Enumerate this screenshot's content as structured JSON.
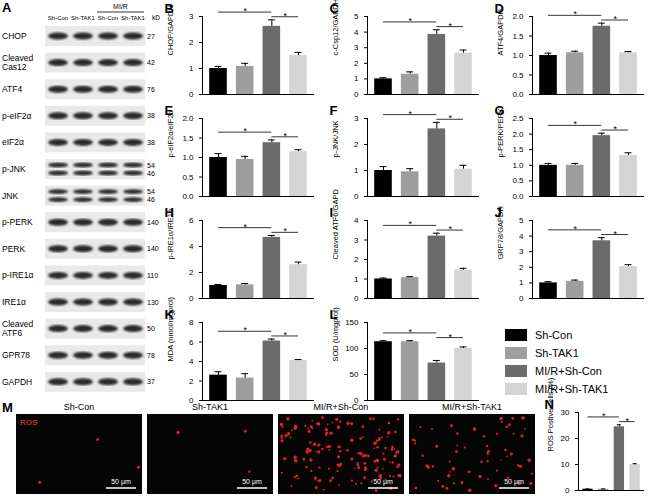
{
  "chart_data": [
    {
      "type": "bar",
      "panel": "B",
      "ylabel": "CHOP/GAPDH",
      "categories": [
        null,
        null,
        null,
        null
      ],
      "tick_labels": "y",
      "colors": [
        "#000000",
        "#9e9e9e",
        "#6b6b6b",
        "#d4d4d4"
      ],
      "values": [
        1.0,
        1.08,
        2.62,
        1.5
      ],
      "errors": [
        0.08,
        0.12,
        0.25,
        0.12
      ],
      "ylim": [
        0,
        3
      ],
      "yticks": [
        0,
        1,
        2,
        3
      ],
      "significance": [
        {
          "from": 0,
          "to": 2,
          "label": "*"
        },
        {
          "from": 2,
          "to": 3,
          "label": "*"
        }
      ]
    },
    {
      "type": "bar",
      "panel": "C",
      "ylabel": "c-Csp12/GAPDH",
      "categories": [
        null,
        null,
        null,
        null
      ],
      "tick_labels": "y",
      "colors": [
        "#000000",
        "#9e9e9e",
        "#6b6b6b",
        "#d4d4d4"
      ],
      "values": [
        1.0,
        1.3,
        3.85,
        2.65
      ],
      "errors": [
        0.08,
        0.15,
        0.3,
        0.2
      ],
      "ylim": [
        0,
        5
      ],
      "yticks": [
        0,
        1,
        2,
        3,
        4,
        5
      ],
      "significance": [
        {
          "from": 0,
          "to": 2,
          "label": "*"
        },
        {
          "from": 2,
          "to": 3,
          "label": "*"
        }
      ]
    },
    {
      "type": "bar",
      "panel": "D",
      "ylabel": "ATF4/GAPDH",
      "categories": [
        null,
        null,
        null,
        null
      ],
      "tick_labels": "y",
      "colors": [
        "#000000",
        "#9e9e9e",
        "#6b6b6b",
        "#d4d4d4"
      ],
      "values": [
        1.0,
        1.07,
        1.75,
        1.07
      ],
      "errors": [
        0.06,
        0.04,
        0.08,
        0.03
      ],
      "ylim": [
        0,
        2
      ],
      "yticks": [
        {
          "value": 0,
          "label": "0.0"
        },
        {
          "value": 0.5,
          "label": "0.5"
        },
        {
          "value": 1,
          "label": "1.0"
        },
        {
          "value": 1.5,
          "label": "1.5"
        },
        {
          "value": 2,
          "label": "2.0"
        }
      ],
      "significance": [
        {
          "from": 0,
          "to": 2,
          "label": "*"
        },
        {
          "from": 2,
          "to": 3,
          "label": "*"
        }
      ]
    },
    {
      "type": "bar",
      "panel": "E",
      "ylabel": "p-eIF2α/eIF2α",
      "categories": [
        null,
        null,
        null,
        null
      ],
      "tick_labels": "y",
      "colors": [
        "#000000",
        "#9e9e9e",
        "#6b6b6b",
        "#d4d4d4"
      ],
      "values": [
        1.0,
        0.95,
        1.38,
        1.15
      ],
      "errors": [
        0.1,
        0.08,
        0.07,
        0.05
      ],
      "ylim": [
        0,
        2
      ],
      "yticks": [
        {
          "value": 0,
          "label": "0.0"
        },
        {
          "value": 0.5,
          "label": "0.5"
        },
        {
          "value": 1,
          "label": "1.0"
        },
        {
          "value": 1.5,
          "label": "1.5"
        },
        {
          "value": 2,
          "label": "2.0"
        }
      ],
      "significance": [
        {
          "from": 0,
          "to": 2,
          "label": "*"
        },
        {
          "from": 2,
          "to": 3,
          "label": "*"
        }
      ]
    },
    {
      "type": "bar",
      "panel": "F",
      "ylabel": "p-JNK/JNK",
      "categories": [
        null,
        null,
        null,
        null
      ],
      "tick_labels": "y",
      "colors": [
        "#000000",
        "#9e9e9e",
        "#6b6b6b",
        "#d4d4d4"
      ],
      "values": [
        1.0,
        0.95,
        2.6,
        1.05
      ],
      "errors": [
        0.15,
        0.12,
        0.25,
        0.15
      ],
      "ylim": [
        0,
        3
      ],
      "yticks": [
        0,
        1,
        2,
        3
      ],
      "significance": [
        {
          "from": 0,
          "to": 2,
          "label": "*"
        },
        {
          "from": 2,
          "to": 3,
          "label": "*"
        }
      ]
    },
    {
      "type": "bar",
      "panel": "G",
      "ylabel": "p-PERK/PERK",
      "categories": [
        null,
        null,
        null,
        null
      ],
      "tick_labels": "y",
      "colors": [
        "#000000",
        "#9e9e9e",
        "#6b6b6b",
        "#d4d4d4"
      ],
      "values": [
        1.0,
        1.0,
        1.95,
        1.32
      ],
      "errors": [
        0.06,
        0.06,
        0.08,
        0.08
      ],
      "ylim": [
        0,
        2.5
      ],
      "yticks": [
        {
          "value": 0,
          "label": "0.0"
        },
        {
          "value": 0.5,
          "label": "0.5"
        },
        {
          "value": 1,
          "label": "1.0"
        },
        {
          "value": 1.5,
          "label": "1.5"
        },
        {
          "value": 2,
          "label": "2.0"
        },
        {
          "value": 2.5,
          "label": "2.5"
        }
      ],
      "significance": [
        {
          "from": 0,
          "to": 2,
          "label": "*"
        },
        {
          "from": 2,
          "to": 3,
          "label": "*"
        }
      ]
    },
    {
      "type": "bar",
      "panel": "H",
      "ylabel": "p-IRE1α/IRE1α",
      "categories": [
        null,
        null,
        null,
        null
      ],
      "tick_labels": "y",
      "colors": [
        "#000000",
        "#9e9e9e",
        "#6b6b6b",
        "#d4d4d4"
      ],
      "values": [
        1.0,
        1.05,
        4.7,
        2.6
      ],
      "errors": [
        0.08,
        0.1,
        0.15,
        0.2
      ],
      "ylim": [
        0,
        6
      ],
      "yticks": [
        0,
        2,
        4,
        6
      ],
      "significance": [
        {
          "from": 0,
          "to": 2,
          "label": "*"
        },
        {
          "from": 2,
          "to": 3,
          "label": "*"
        }
      ]
    },
    {
      "type": "bar",
      "panel": "I",
      "ylabel": "Cleaved ATF6/GAPD",
      "categories": [
        null,
        null,
        null,
        null
      ],
      "tick_labels": "y",
      "colors": [
        "#000000",
        "#9e9e9e",
        "#6b6b6b",
        "#d4d4d4"
      ],
      "values": [
        1.0,
        1.07,
        3.2,
        1.45
      ],
      "errors": [
        0.05,
        0.05,
        0.15,
        0.1
      ],
      "ylim": [
        0,
        4
      ],
      "yticks": [
        0,
        1,
        2,
        3,
        4
      ],
      "significance": [
        {
          "from": 0,
          "to": 2,
          "label": "*"
        },
        {
          "from": 2,
          "to": 3,
          "label": "*"
        }
      ]
    },
    {
      "type": "bar",
      "panel": "J",
      "ylabel": "GRP78/GAPDH",
      "categories": [
        null,
        null,
        null,
        null
      ],
      "tick_labels": "y",
      "colors": [
        "#000000",
        "#9e9e9e",
        "#6b6b6b",
        "#d4d4d4"
      ],
      "values": [
        1.0,
        1.1,
        3.7,
        2.05
      ],
      "errors": [
        0.08,
        0.08,
        0.2,
        0.12
      ],
      "ylim": [
        0,
        5
      ],
      "yticks": [
        0,
        1,
        2,
        3,
        4,
        5
      ],
      "significance": [
        {
          "from": 0,
          "to": 2,
          "label": "*"
        },
        {
          "from": 2,
          "to": 3,
          "label": "*"
        }
      ]
    },
    {
      "type": "bar",
      "panel": "K",
      "ylabel": "MDA (nmol/mgprol)",
      "categories": [
        null,
        null,
        null,
        null
      ],
      "tick_labels": "y",
      "colors": [
        "#000000",
        "#9e9e9e",
        "#6b6b6b",
        "#d4d4d4"
      ],
      "values": [
        2.6,
        2.3,
        6.1,
        4.1
      ],
      "errors": [
        0.35,
        0.45,
        0.2,
        0.1
      ],
      "ylim": [
        0,
        8
      ],
      "yticks": [
        0,
        2,
        4,
        6,
        8
      ],
      "significance": [
        {
          "from": 0,
          "to": 2,
          "label": "*"
        },
        {
          "from": 2,
          "to": 3,
          "label": "*"
        }
      ]
    },
    {
      "type": "bar",
      "panel": "L",
      "ylabel": "SOD (U/mgprot)",
      "categories": [
        null,
        null,
        null,
        null
      ],
      "tick_labels": "y",
      "colors": [
        "#000000",
        "#9e9e9e",
        "#6b6b6b",
        "#d4d4d4"
      ],
      "values": [
        113,
        113,
        72,
        100
      ],
      "errors": [
        2,
        2,
        5,
        3
      ],
      "ylim": [
        0,
        150
      ],
      "yticks": [
        0,
        50,
        100,
        150
      ],
      "significance": [
        {
          "from": 0,
          "to": 2,
          "label": "*"
        },
        {
          "from": 2,
          "to": 3,
          "label": "*"
        }
      ]
    },
    {
      "type": "bar",
      "panel": "N",
      "ylabel": "ROS Postive cells (%)",
      "categories": [
        null,
        null,
        null,
        null
      ],
      "tick_labels": "y",
      "colors": [
        "#000000",
        "#9e9e9e",
        "#6b6b6b",
        "#d4d4d4"
      ],
      "values": [
        0.5,
        0.5,
        24.5,
        10.0
      ],
      "errors": [
        0.1,
        0.1,
        0.8,
        0.3
      ],
      "ylim": [
        0,
        30
      ],
      "yticks": [
        0,
        10,
        20,
        30
      ],
      "significance": [
        {
          "from": 0,
          "to": 2,
          "label": "*"
        },
        {
          "from": 2,
          "to": 3,
          "label": "*"
        }
      ]
    }
  ],
  "shared_legend": {
    "entries": [
      "Sh-Con",
      "Sh-TAK1",
      "MI/R+Sh-Con",
      "MI/R+Sh-TAK1"
    ],
    "colors": [
      "#000000",
      "#9e9e9e",
      "#6b6b6b",
      "#d4d4d4"
    ]
  },
  "blot": {
    "panel": "A",
    "lanes": [
      "Sh-Con",
      "Sh-TAK1",
      "Sh-Con",
      "Sh-TAK1"
    ],
    "group": {
      "label": "MI/R",
      "lanes": [
        2,
        3
      ]
    },
    "unit": "kD",
    "rows": [
      {
        "label": [
          "CHOP"
        ],
        "kd": [
          27
        ]
      },
      {
        "label": [
          "Cleaved",
          "Cas12"
        ],
        "kd": [
          42
        ]
      },
      {
        "label": [
          "ATF4"
        ],
        "kd": [
          76
        ]
      },
      {
        "label": [
          "p-eIF2α"
        ],
        "kd": [
          38
        ]
      },
      {
        "label": [
          "eIF2α"
        ],
        "kd": [
          38
        ]
      },
      {
        "label": [
          "p-JNK"
        ],
        "kd": [
          54,
          46
        ]
      },
      {
        "label": [
          "JNK"
        ],
        "kd": [
          54,
          46
        ]
      },
      {
        "label": [
          "p-PERK"
        ],
        "kd": [
          140
        ]
      },
      {
        "label": [
          "PERK"
        ],
        "kd": [
          140
        ]
      },
      {
        "label": [
          "p-IRE1α"
        ],
        "kd": [
          110
        ]
      },
      {
        "label": [
          "IRE1α"
        ],
        "kd": [
          130
        ]
      },
      {
        "label": [
          "Cleaved",
          "ATF6"
        ],
        "kd": [
          50
        ]
      },
      {
        "label": [
          "GPR78"
        ],
        "kd": [
          78
        ]
      },
      {
        "label": [
          "GAPDH"
        ],
        "kd": [
          37
        ]
      }
    ]
  },
  "ros_images": {
    "panel": "M",
    "stain": "ROS",
    "scale_bar": "50 μm",
    "titles": [
      "Sh-Con",
      "Sh-TAK1",
      "MI/R+Sh-Con",
      "MI/R+Sh-TAK1"
    ]
  }
}
